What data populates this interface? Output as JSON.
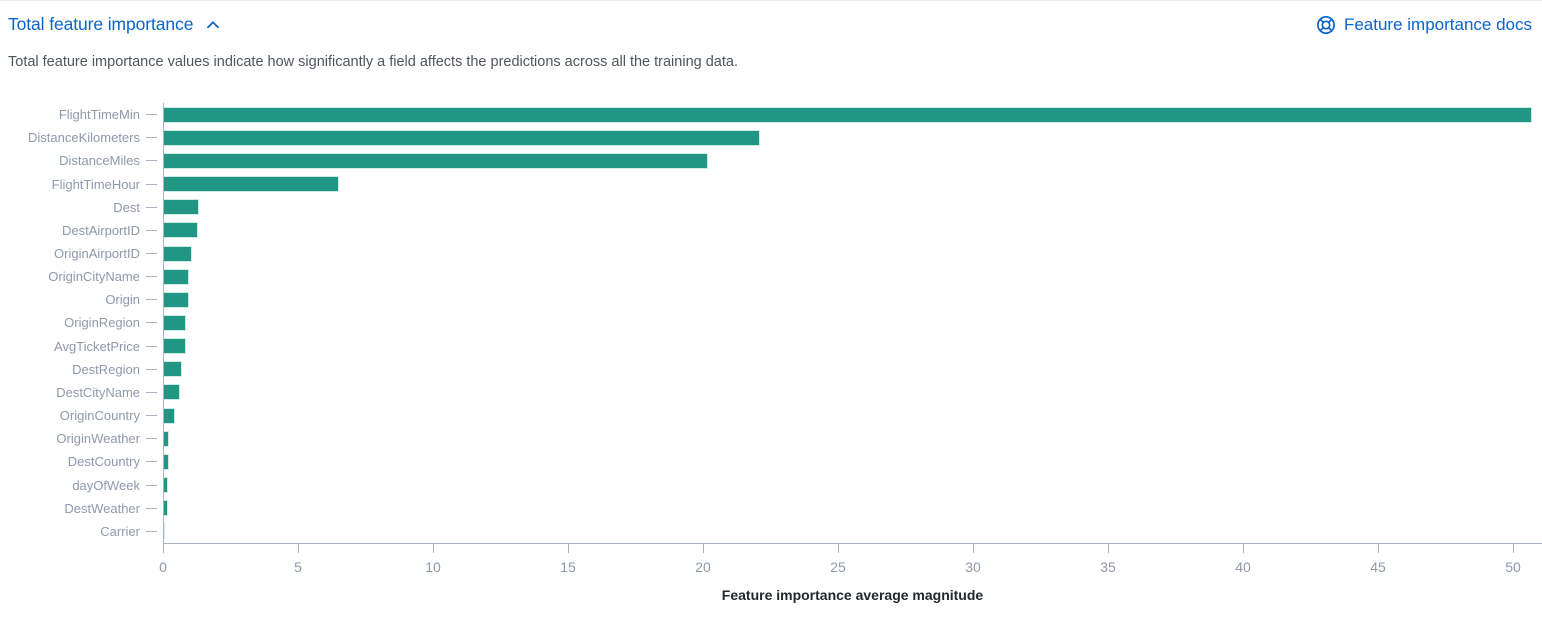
{
  "header": {
    "title": "Total feature importance",
    "collapse_icon": "chevron-up-icon",
    "docs_link_label": "Feature importance docs",
    "docs_icon": "lifebuoy-icon"
  },
  "description": "Total feature importance values indicate how significantly a field affects the predictions across all the training data.",
  "colors": {
    "link_blue": "#0b64cb",
    "bar_teal": "#229685",
    "axis_line": "#aab3c2",
    "tick_label_text": "#8e99ac",
    "description_text": "#50555e",
    "x_axis_title_text": "#23272c"
  },
  "chart_data": {
    "type": "bar",
    "orientation": "horizontal",
    "title": "Total feature importance",
    "xlabel": "Feature importance average magnitude",
    "ylabel": "",
    "categories": [
      "FlightTimeMin",
      "DistanceKilometers",
      "DistanceMiles",
      "FlightTimeHour",
      "Dest",
      "DestAirportID",
      "OriginAirportID",
      "OriginCityName",
      "Origin",
      "OriginRegion",
      "AvgTicketPrice",
      "DestRegion",
      "DestCityName",
      "OriginCountry",
      "OriginWeather",
      "DestCountry",
      "dayOfWeek",
      "DestWeather",
      "Carrier"
    ],
    "values": [
      50.7,
      22.1,
      20.2,
      6.5,
      1.35,
      1.3,
      1.07,
      0.97,
      0.95,
      0.87,
      0.85,
      0.72,
      0.62,
      0.44,
      0.22,
      0.22,
      0.19,
      0.17,
      0.07
    ],
    "x_ticks": [
      0,
      5,
      10,
      15,
      20,
      25,
      30,
      35,
      40,
      45,
      50
    ],
    "xlim": [
      0,
      51
    ],
    "grid": false,
    "legend": "none",
    "bar_color": "#229685"
  }
}
